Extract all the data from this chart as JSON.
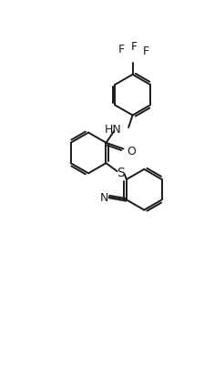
{
  "figure_size": [
    2.24,
    4.14
  ],
  "dpi": 100,
  "background": "#ffffff",
  "line_color": "#1a1a1a",
  "line_width": 1.4,
  "font_size": 9,
  "xlim": [
    0,
    10
  ],
  "ylim": [
    0,
    18.5
  ],
  "rings": {
    "r": 1.0
  }
}
